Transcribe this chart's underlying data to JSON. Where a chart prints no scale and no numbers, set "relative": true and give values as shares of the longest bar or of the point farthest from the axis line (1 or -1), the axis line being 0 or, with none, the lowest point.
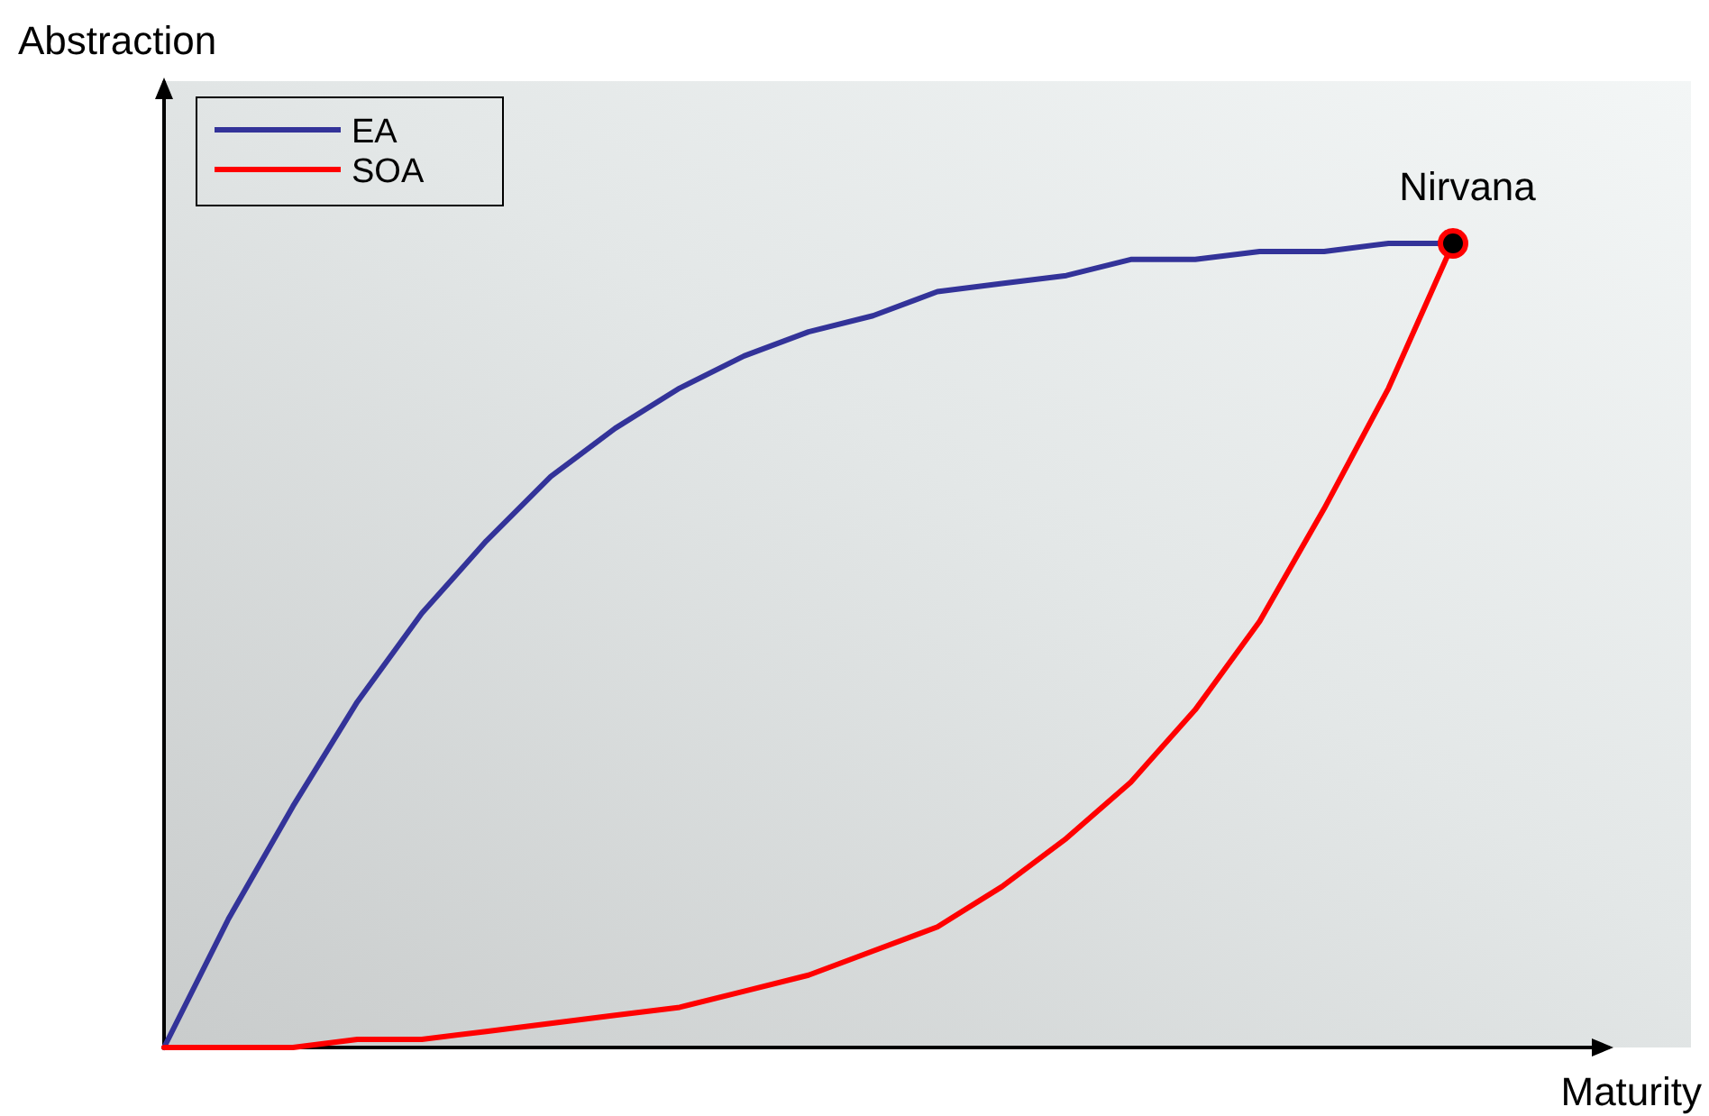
{
  "chart_data": {
    "type": "line",
    "relative": true,
    "xlabel": "Maturity",
    "ylabel": "Abstraction",
    "categories": [
      null,
      null,
      null,
      null,
      null,
      null,
      null,
      null,
      null,
      null,
      null,
      null,
      null,
      null,
      null,
      null,
      null,
      null,
      null,
      null,
      null
    ],
    "series": [
      {
        "name": "EA",
        "color": "#333399",
        "values": [
          0,
          0.16,
          0.3,
          0.43,
          0.54,
          0.63,
          0.71,
          0.77,
          0.82,
          0.86,
          0.89,
          0.91,
          0.94,
          0.95,
          0.96,
          0.98,
          0.98,
          0.99,
          0.99,
          1,
          1
        ]
      },
      {
        "name": "SOA",
        "color": "#ff0000",
        "values": [
          0,
          0,
          0,
          0.01,
          0.01,
          0.02,
          0.03,
          0.04,
          0.05,
          0.07,
          0.09,
          0.12,
          0.15,
          0.2,
          0.26,
          0.33,
          0.42,
          0.53,
          0.67,
          0.82,
          1
        ]
      }
    ],
    "annotations": [
      "Nirvana"
    ],
    "legend": "top left",
    "marker": "none",
    "line_style": "solid"
  }
}
